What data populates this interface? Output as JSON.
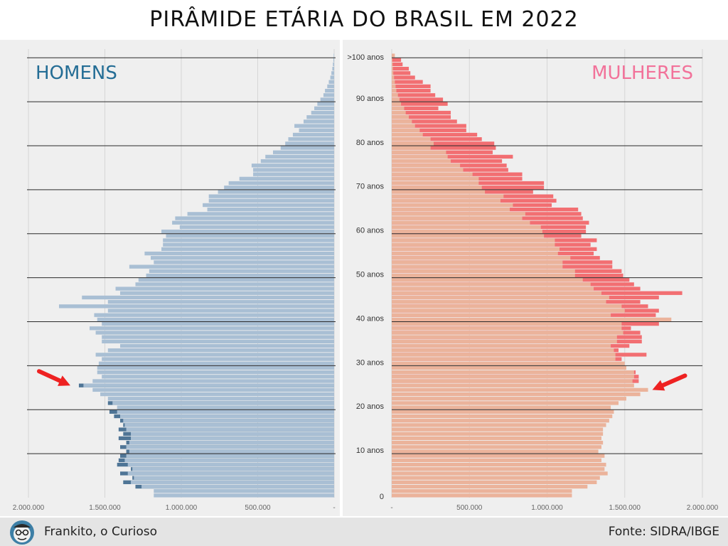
{
  "page": {
    "title": "PIRÂMIDE ETÁRIA DO BRASIL EM 2022"
  },
  "footer": {
    "credit": "Frankito, o Curioso",
    "source": "Fonte: SIDRA/IBGE"
  },
  "colors": {
    "men_light": "#a9bfd4",
    "men_dark": "#4f7596",
    "women_light": "#ebb39b",
    "women_dark": "#f26f72",
    "men_label": "#246d95",
    "women_label": "#f2729a",
    "arrow": "#ee2222"
  },
  "chart_data": {
    "type": "bar",
    "orientation": "horizontal",
    "subtype": "population-pyramid",
    "title": "PIRÂMIDE ETÁRIA DO BRASIL EM 2022",
    "series": [
      {
        "name": "HOMENS",
        "side": "left"
      },
      {
        "name": "MULHERES",
        "side": "right"
      }
    ],
    "age_labels": [
      {
        "age": 0,
        "label": "0"
      },
      {
        "age": 10,
        "label": "10 anos"
      },
      {
        "age": 20,
        "label": "20 anos"
      },
      {
        "age": 30,
        "label": "30 anos"
      },
      {
        "age": 40,
        "label": "40 anos"
      },
      {
        "age": 50,
        "label": "50 anos"
      },
      {
        "age": 60,
        "label": "60 anos"
      },
      {
        "age": 70,
        "label": "70 anos"
      },
      {
        "age": 80,
        "label": "80 anos"
      },
      {
        "age": 90,
        "label": "90 anos"
      },
      {
        "age": 100,
        "label": ">100 anos"
      }
    ],
    "x_ticks_left": [
      {
        "value": 2000000,
        "label": "2.000.000"
      },
      {
        "value": 1500000,
        "label": "1.500.000"
      },
      {
        "value": 1000000,
        "label": "1.000.000"
      },
      {
        "value": 500000,
        "label": "500.000"
      },
      {
        "value": 0,
        "label": "-"
      }
    ],
    "x_ticks_right": [
      {
        "value": 0,
        "label": "-"
      },
      {
        "value": 500000,
        "label": "500.000"
      },
      {
        "value": 1000000,
        "label": "1.000.000"
      },
      {
        "value": 1500000,
        "label": "1.500.000"
      },
      {
        "value": 2000000,
        "label": "2.000.000"
      }
    ],
    "xlim": [
      0,
      2000000
    ],
    "ages": [
      0,
      1,
      2,
      3,
      4,
      5,
      6,
      7,
      8,
      9,
      10,
      11,
      12,
      13,
      14,
      15,
      16,
      17,
      18,
      19,
      20,
      21,
      22,
      23,
      24,
      25,
      26,
      27,
      28,
      29,
      30,
      31,
      32,
      33,
      34,
      35,
      36,
      37,
      38,
      39,
      40,
      41,
      42,
      43,
      44,
      45,
      46,
      47,
      48,
      49,
      50,
      51,
      52,
      53,
      54,
      55,
      56,
      57,
      58,
      59,
      60,
      61,
      62,
      63,
      64,
      65,
      66,
      67,
      68,
      69,
      70,
      71,
      72,
      73,
      74,
      75,
      76,
      77,
      78,
      79,
      80,
      81,
      82,
      83,
      84,
      85,
      86,
      87,
      88,
      89,
      90,
      91,
      92,
      93,
      94,
      95,
      96,
      97,
      98,
      99,
      100
    ],
    "men_light": [
      1180000,
      1180000,
      1260000,
      1330000,
      1310000,
      1350000,
      1320000,
      1350000,
      1370000,
      1360000,
      1340000,
      1360000,
      1340000,
      1330000,
      1330000,
      1360000,
      1370000,
      1380000,
      1400000,
      1420000,
      1420000,
      1450000,
      1480000,
      1530000,
      1580000,
      1640000,
      1580000,
      1520000,
      1550000,
      1550000,
      1540000,
      1520000,
      1560000,
      1480000,
      1400000,
      1520000,
      1520000,
      1560000,
      1600000,
      1520000,
      1550000,
      1570000,
      1480000,
      1800000,
      1480000,
      1650000,
      1400000,
      1430000,
      1300000,
      1280000,
      1230000,
      1210000,
      1340000,
      1180000,
      1200000,
      1240000,
      1130000,
      1120000,
      1120000,
      1100000,
      1130000,
      1010000,
      1060000,
      1040000,
      960000,
      830000,
      860000,
      820000,
      820000,
      760000,
      720000,
      690000,
      620000,
      530000,
      530000,
      540000,
      480000,
      450000,
      400000,
      350000,
      320000,
      300000,
      270000,
      230000,
      260000,
      200000,
      180000,
      150000,
      130000,
      110000,
      90000,
      70000,
      60000,
      45000,
      35000,
      25000,
      18000,
      12000,
      8000,
      5000,
      3000
    ],
    "men_dark": [
      1180000,
      1180000,
      1300000,
      1380000,
      1320000,
      1400000,
      1330000,
      1420000,
      1410000,
      1400000,
      1360000,
      1400000,
      1360000,
      1410000,
      1380000,
      1410000,
      1380000,
      1400000,
      1440000,
      1470000,
      1420000,
      1480000,
      1480000,
      1530000,
      1580000,
      1670000,
      1580000,
      1520000,
      1550000,
      1550000,
      1540000,
      1520000,
      1560000,
      1480000,
      1400000,
      1520000,
      1520000,
      1560000,
      1600000,
      1520000,
      1550000,
      1570000,
      1480000,
      1800000,
      1480000,
      1650000,
      1400000,
      1430000,
      1300000,
      1280000,
      1230000,
      1210000,
      1340000,
      1180000,
      1200000,
      1240000,
      1130000,
      1120000,
      1120000,
      1100000,
      1130000,
      1010000,
      1060000,
      1040000,
      960000,
      830000,
      860000,
      820000,
      820000,
      760000,
      720000,
      690000,
      620000,
      530000,
      530000,
      540000,
      480000,
      450000,
      400000,
      350000,
      320000,
      300000,
      270000,
      230000,
      260000,
      200000,
      180000,
      150000,
      130000,
      110000,
      90000,
      70000,
      60000,
      45000,
      35000,
      25000,
      18000,
      12000,
      8000,
      5000,
      3000
    ],
    "women_light": [
      1160000,
      1160000,
      1260000,
      1320000,
      1340000,
      1300000,
      1370000,
      1380000,
      1350000,
      1340000,
      1300000,
      1350000,
      1330000,
      1350000,
      1360000,
      1360000,
      1380000,
      1400000,
      1420000,
      1430000,
      1410000,
      1460000,
      1510000,
      1600000,
      1650000,
      1560000,
      1550000,
      1560000,
      1560000,
      1510000,
      1500000,
      1440000,
      1440000,
      1430000,
      1410000,
      1450000,
      1450000,
      1490000,
      1480000,
      1480000,
      1480000,
      1410000,
      1500000,
      1480000,
      1380000,
      1400000,
      1350000,
      1300000,
      1280000,
      1230000,
      1180000,
      1180000,
      1100000,
      1100000,
      1150000,
      1070000,
      1080000,
      1050000,
      1050000,
      980000,
      970000,
      960000,
      890000,
      840000,
      860000,
      760000,
      780000,
      700000,
      720000,
      600000,
      580000,
      560000,
      560000,
      520000,
      460000,
      440000,
      380000,
      360000,
      350000,
      250000,
      270000,
      250000,
      200000,
      180000,
      150000,
      130000,
      110000,
      90000,
      80000,
      60000,
      50000,
      40000,
      30000,
      25000,
      20000,
      15000,
      10000,
      8000,
      6000,
      4000,
      20000
    ],
    "women_light_ext": [
      1160000,
      1160000,
      1260000,
      1320000,
      1340000,
      1390000,
      1370000,
      1380000,
      1350000,
      1370000,
      1330000,
      1350000,
      1360000,
      1350000,
      1360000,
      1360000,
      1380000,
      1400000,
      1420000,
      1430000,
      1410000,
      1460000,
      1510000,
      1600000,
      1650000,
      1560000,
      1550000,
      1560000,
      1560000,
      1510000,
      1500000,
      1440000,
      1440000,
      1430000,
      1410000,
      1450000,
      1450000,
      1490000,
      1480000,
      1480000,
      1800000,
      1410000,
      1500000,
      1480000,
      1380000,
      1400000,
      1350000,
      1300000,
      1280000,
      1230000,
      1180000,
      1180000,
      1100000,
      1100000,
      1150000,
      1070000,
      1080000,
      1050000,
      1050000,
      980000,
      970000,
      960000,
      890000,
      840000,
      860000,
      760000,
      780000,
      700000,
      720000,
      600000,
      580000,
      560000,
      560000,
      520000,
      460000,
      440000,
      380000,
      360000,
      350000,
      250000,
      270000,
      250000,
      200000,
      180000,
      150000,
      130000,
      110000,
      90000,
      80000,
      60000,
      50000,
      40000,
      30000,
      25000,
      20000,
      15000,
      10000,
      8000,
      6000,
      4000,
      20000
    ],
    "women_dark": [
      1160000,
      1160000,
      1260000,
      1320000,
      1340000,
      1390000,
      1370000,
      1380000,
      1350000,
      1370000,
      1330000,
      1350000,
      1360000,
      1350000,
      1360000,
      1360000,
      1380000,
      1400000,
      1420000,
      1430000,
      1410000,
      1460000,
      1510000,
      1600000,
      1650000,
      1560000,
      1590000,
      1590000,
      1570000,
      1510000,
      1500000,
      1480000,
      1640000,
      1460000,
      1530000,
      1610000,
      1610000,
      1600000,
      1540000,
      1720000,
      1650000,
      1700000,
      1720000,
      1650000,
      1600000,
      1720000,
      1870000,
      1600000,
      1560000,
      1530000,
      1490000,
      1480000,
      1420000,
      1420000,
      1340000,
      1300000,
      1320000,
      1280000,
      1320000,
      1220000,
      1250000,
      1250000,
      1270000,
      1230000,
      1220000,
      1200000,
      1030000,
      1060000,
      1040000,
      910000,
      980000,
      980000,
      840000,
      840000,
      750000,
      740000,
      710000,
      780000,
      650000,
      670000,
      660000,
      580000,
      550000,
      480000,
      480000,
      420000,
      380000,
      380000,
      300000,
      360000,
      330000,
      280000,
      250000,
      250000,
      200000,
      150000,
      120000,
      110000,
      70000,
      60000,
      20000
    ],
    "annotations": [
      {
        "type": "arrow",
        "side": "left",
        "age": 25,
        "pointing": "right"
      },
      {
        "type": "arrow",
        "side": "right",
        "age": 24,
        "pointing": "left"
      }
    ],
    "grid": true,
    "legend": "in-panel labels (top-left HOMENS, top-right MULHERES)"
  }
}
